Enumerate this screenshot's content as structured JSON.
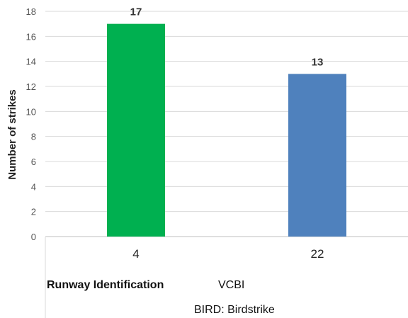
{
  "chart_data": {
    "type": "bar",
    "categories": [
      "4",
      "22"
    ],
    "values": [
      17,
      13
    ],
    "colors": [
      "#00b050",
      "#4f81bd"
    ],
    "data_labels": [
      "17",
      "13"
    ],
    "ylabel": "Number  of strikes",
    "xlabel": "Runway Identification",
    "ylim": [
      0,
      18
    ],
    "yticks": [
      "0",
      "2",
      "4",
      "6",
      "8",
      "10",
      "12",
      "14",
      "16",
      "18"
    ],
    "grid": true,
    "annotations": [
      "VCBI",
      "BIRD: Birdstrike"
    ]
  }
}
